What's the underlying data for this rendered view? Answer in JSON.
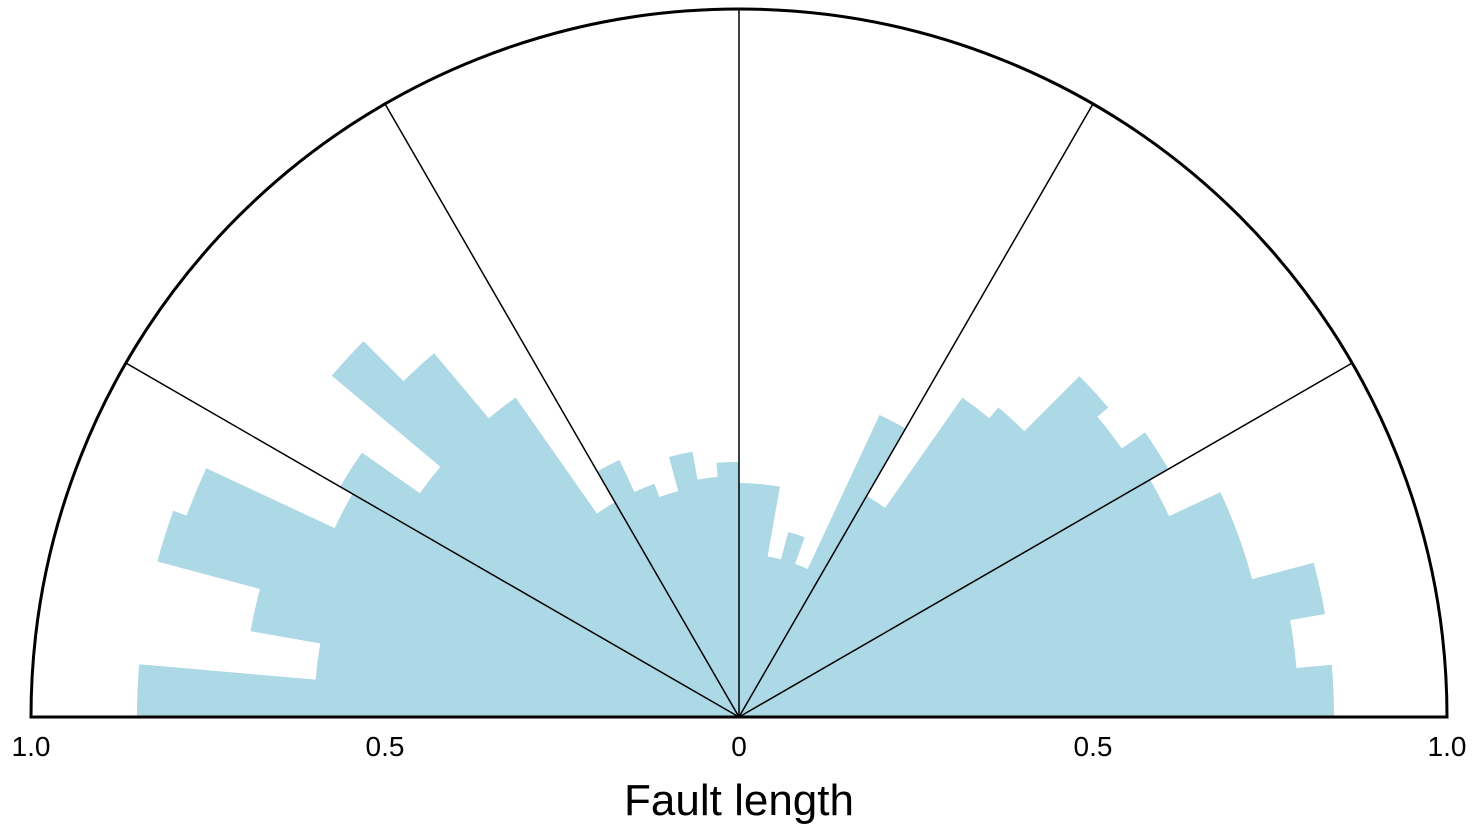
{
  "chart_data": {
    "type": "rose",
    "arc": "upper half (W to E)",
    "bin_width_deg": 5,
    "bins_deg_start": [
      -90,
      -85,
      -80,
      -75,
      -70,
      -65,
      -60,
      -55,
      -50,
      -45,
      -40,
      -35,
      -30,
      -25,
      -20,
      -15,
      -10,
      -5,
      0,
      5,
      10,
      15,
      20,
      25,
      30,
      35,
      40,
      45,
      50,
      55,
      60,
      65,
      70,
      75,
      80,
      85
    ],
    "values": [
      0.85,
      0.6,
      0.7,
      0.85,
      0.83,
      0.63,
      0.65,
      0.55,
      0.75,
      0.67,
      0.55,
      0.35,
      0.4,
      0.35,
      0.33,
      0.38,
      0.34,
      0.36,
      0.33,
      0.33,
      0.23,
      0.27,
      0.23,
      0.47,
      0.36,
      0.55,
      0.57,
      0.68,
      0.66,
      0.7,
      0.67,
      0.75,
      0.75,
      0.84,
      0.79,
      0.84
    ],
    "fill_color": "#add8e6",
    "rlim": [
      0,
      1.0
    ],
    "spoke_angles_deg": [
      -60,
      -30,
      0,
      30,
      60
    ],
    "tick_labels": [
      "1.0",
      "0.5",
      "0",
      "0.5",
      "1.0"
    ],
    "xlabel": "Fault length"
  }
}
